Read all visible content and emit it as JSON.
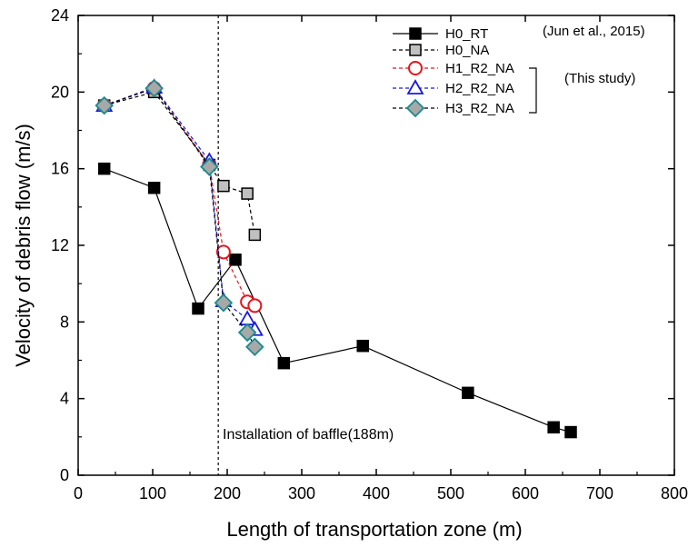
{
  "chart_data": {
    "type": "line",
    "xlabel": "Length of transportation zone (m)",
    "ylabel": "Velocity of debris flow (m/s)",
    "xlim": [
      0,
      800
    ],
    "ylim": [
      0,
      24
    ],
    "xticks": [
      "0",
      "100",
      "200",
      "300",
      "400",
      "500",
      "600",
      "700",
      "800"
    ],
    "yticks": [
      "0",
      "4",
      "8",
      "12",
      "16",
      "20",
      "24"
    ],
    "grid": false,
    "legend_position": "top-right",
    "series": [
      {
        "name": "H0_RT",
        "marker": "square",
        "fill": "#000000",
        "stroke": "#000000",
        "line_color": "#000000",
        "dash": "solid",
        "x": [
          35,
          102,
          161,
          211,
          276,
          382,
          523,
          638,
          661
        ],
        "y": [
          16.0,
          15.0,
          8.7,
          11.25,
          5.85,
          6.75,
          4.3,
          2.5,
          2.25
        ]
      },
      {
        "name": "H0_NA",
        "marker": "square",
        "fill": "#c0c0c0",
        "stroke": "#000000",
        "line_color": "#000000",
        "dash": "dashed",
        "x": [
          35,
          102,
          176,
          195,
          227,
          237
        ],
        "y": [
          19.3,
          20.0,
          16.2,
          15.1,
          14.7,
          12.55
        ]
      },
      {
        "name": "H1_R2_NA",
        "marker": "circle",
        "fill": "#ffffff",
        "stroke": "#e8141c",
        "line_color": "#e8141c",
        "dash": "dashed",
        "x": [
          35,
          102,
          176,
          195,
          227,
          237
        ],
        "y": [
          19.3,
          20.2,
          16.2,
          11.65,
          9.05,
          8.85
        ]
      },
      {
        "name": "H2_R2_NA",
        "marker": "triangle",
        "fill": "#ffffff",
        "stroke": "#1a1adc",
        "line_color": "#1a1adc",
        "dash": "dashed",
        "x": [
          35,
          102,
          176,
          195,
          227,
          237
        ],
        "y": [
          19.3,
          20.25,
          16.4,
          9.1,
          8.15,
          7.6
        ]
      },
      {
        "name": "H3_R2_NA",
        "marker": "diamond",
        "fill": "#a8a8a8",
        "stroke": "#1a8a8a",
        "line_color": "#000000",
        "dash": "dashed",
        "x": [
          35,
          102,
          176,
          195,
          227,
          237
        ],
        "y": [
          19.3,
          20.2,
          16.1,
          9.0,
          7.45,
          6.7
        ]
      }
    ],
    "annotations": {
      "baffle_line_x": 188,
      "baffle_label": "Installation of baffle(188m)",
      "source_label": "(Jun et al., 2015)",
      "study_label": "(This study)"
    }
  }
}
